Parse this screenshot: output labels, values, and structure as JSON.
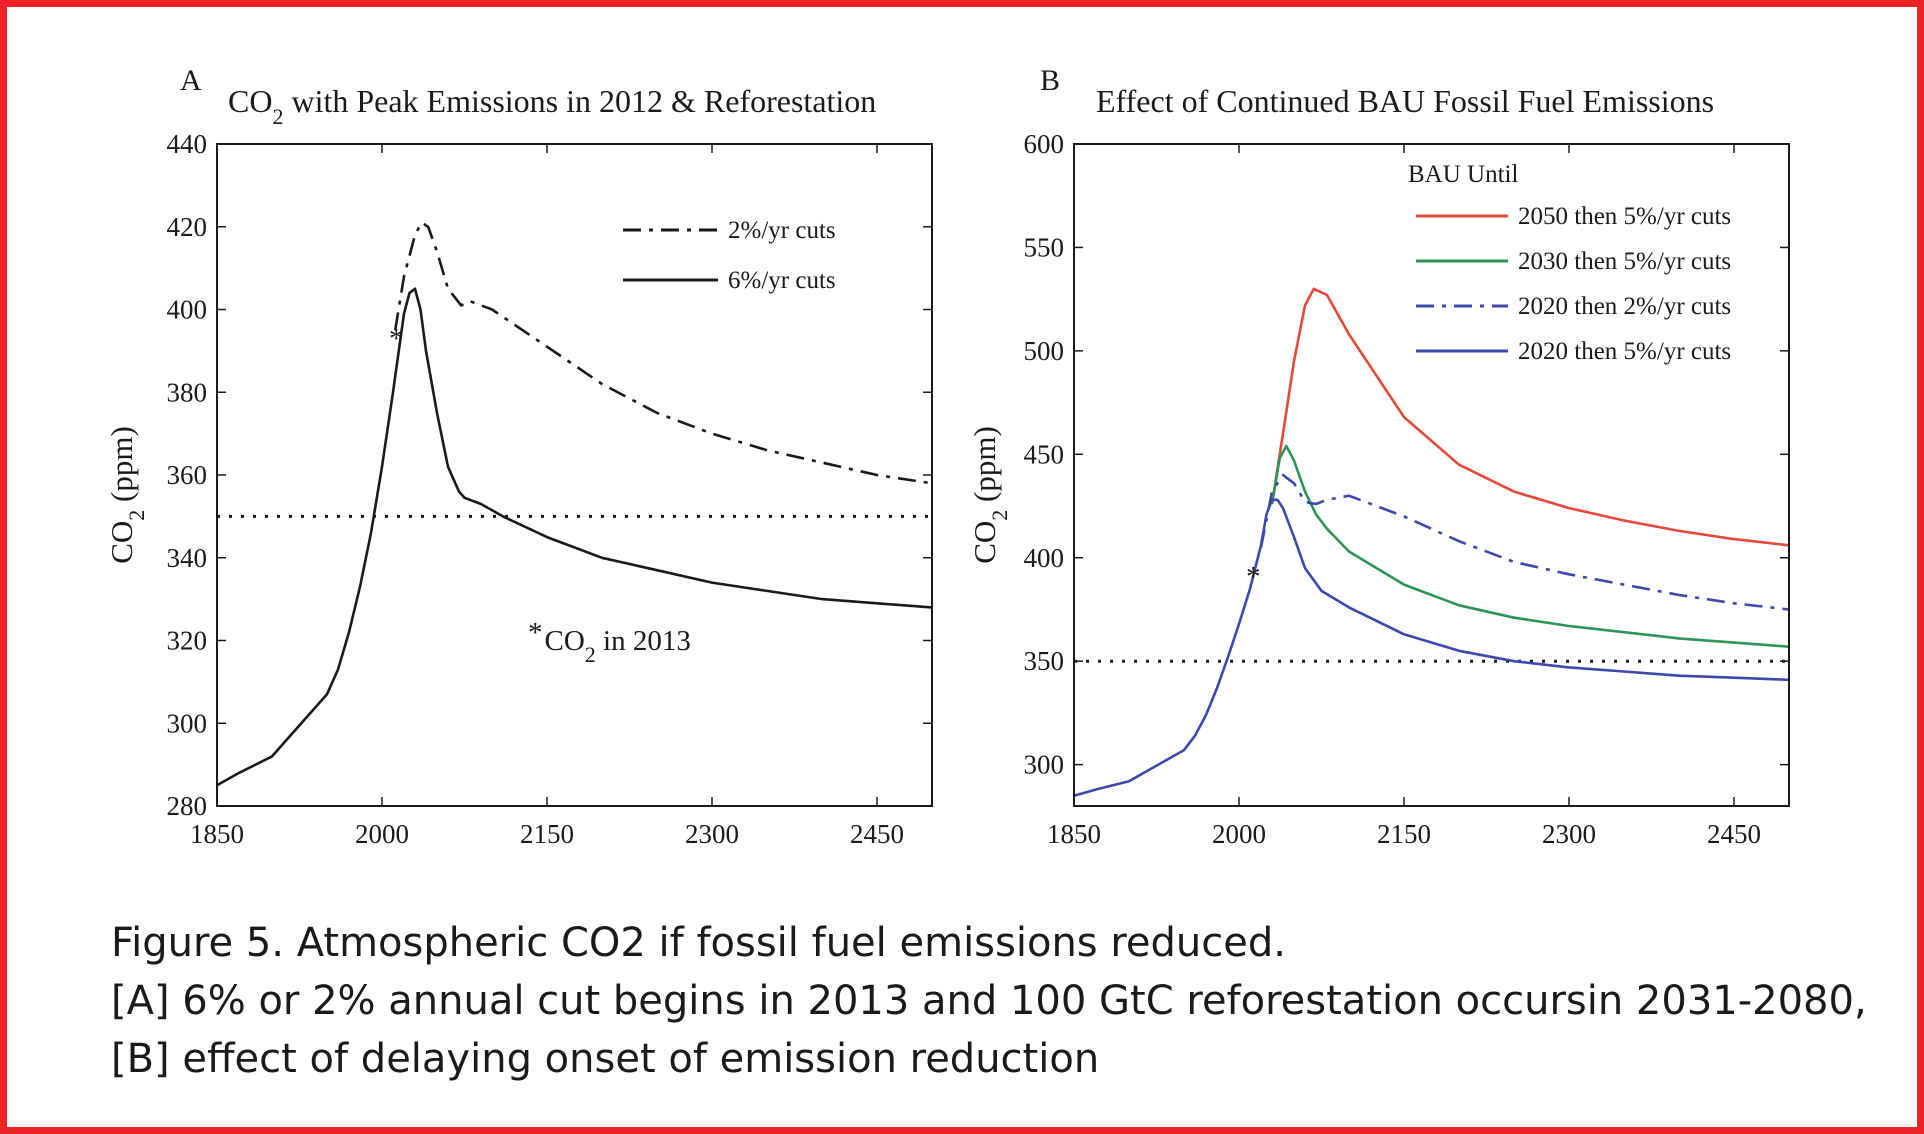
{
  "chart_data": [
    {
      "panel": "A",
      "type": "line",
      "title_prefix": "CO",
      "title_sub": "2",
      "title_rest": " with Peak Emissions in 2012 & Reforestation",
      "ylabel_main": "CO",
      "ylabel_sub": "2",
      "ylabel_rest": " (ppm)",
      "xlim": [
        1850,
        2500
      ],
      "ylim": [
        280,
        440
      ],
      "xticks": [
        1850,
        2000,
        2150,
        2300,
        2450
      ],
      "yticks": [
        280,
        300,
        320,
        340,
        360,
        380,
        400,
        420,
        440
      ],
      "reference_line": {
        "y": 350,
        "style": "dotted"
      },
      "marker": {
        "x": 2013,
        "y": 395,
        "symbol": "*"
      },
      "annotation": {
        "prefix": "*",
        "text_main": "CO",
        "text_sub": "2",
        "text_rest": " in 2013"
      },
      "legend_position": "top-right",
      "series": [
        {
          "name": "2%/yr cuts",
          "style": "dashdot",
          "color": "#1a1a1a",
          "x": [
            2012,
            2020,
            2030,
            2036,
            2042,
            2050,
            2060,
            2072,
            2080,
            2100,
            2150,
            2200,
            2250,
            2300,
            2350,
            2400,
            2450,
            2500
          ],
          "y": [
            395,
            408,
            418,
            421,
            420,
            414,
            405,
            401,
            402,
            400,
            391,
            382,
            375,
            370,
            366,
            363,
            360,
            358
          ]
        },
        {
          "name": "6%/yr cuts",
          "style": "solid",
          "color": "#1a1a1a",
          "x": [
            1850,
            1870,
            1900,
            1920,
            1950,
            1960,
            1970,
            1980,
            1990,
            2000,
            2010,
            2020,
            2025,
            2030,
            2035,
            2040,
            2050,
            2060,
            2070,
            2075,
            2090,
            2110,
            2150,
            2200,
            2250,
            2300,
            2350,
            2400,
            2450,
            2500
          ],
          "y": [
            285,
            288,
            292,
            298,
            307,
            313,
            322,
            333,
            346,
            362,
            380,
            399,
            404,
            405,
            400,
            390,
            375,
            362,
            356,
            354.5,
            353,
            350,
            345,
            340,
            337,
            334,
            332,
            330,
            329,
            328
          ]
        }
      ]
    },
    {
      "panel": "B",
      "type": "line",
      "title": "Effect of Continued BAU Fossil Fuel Emissions",
      "ylabel_main": "CO",
      "ylabel_sub": "2",
      "ylabel_rest": " (ppm)",
      "xlim": [
        1850,
        2500
      ],
      "ylim": [
        280,
        600
      ],
      "xticks": [
        1850,
        2000,
        2150,
        2300,
        2450
      ],
      "yticks": [
        300,
        350,
        400,
        450,
        500,
        550,
        600
      ],
      "reference_line": {
        "y": 350,
        "style": "dotted"
      },
      "marker": {
        "x": 2013,
        "y": 395,
        "symbol": "*"
      },
      "legend_title": "BAU Until",
      "legend_position": "top-right",
      "series": [
        {
          "name": "2050 then 5%/yr cuts",
          "style": "solid",
          "color": "#e8473a",
          "x": [
            2030,
            2040,
            2050,
            2060,
            2068,
            2080,
            2100,
            2150,
            2200,
            2250,
            2300,
            2350,
            2400,
            2450,
            2500
          ],
          "y": [
            426,
            460,
            495,
            522,
            530,
            527,
            508,
            468,
            445,
            432,
            424,
            418,
            413,
            409,
            406
          ]
        },
        {
          "name": "2030 then 5%/yr cuts",
          "style": "solid",
          "color": "#2e9455",
          "x": [
            2030,
            2037,
            2043,
            2050,
            2060,
            2070,
            2080,
            2100,
            2150,
            2200,
            2250,
            2300,
            2350,
            2400,
            2450,
            2500
          ],
          "y": [
            426,
            448,
            454,
            447,
            432,
            421,
            414,
            403,
            387,
            377,
            371,
            367,
            364,
            361,
            359,
            357
          ]
        },
        {
          "name": "2020 then 2%/yr cuts",
          "style": "dashdot",
          "color": "#3a49ab",
          "x": [
            2020,
            2030,
            2040,
            2050,
            2060,
            2070,
            2080,
            2100,
            2150,
            2200,
            2250,
            2300,
            2350,
            2400,
            2450,
            2500
          ],
          "y": [
            405,
            432,
            440,
            436,
            427,
            426,
            428,
            430,
            420,
            408,
            398,
            392,
            387,
            382,
            378,
            375
          ]
        },
        {
          "name": "2020 then 5%/yr cuts",
          "style": "solid",
          "color": "#3a49ab",
          "x": [
            1850,
            1870,
            1900,
            1920,
            1950,
            1960,
            1970,
            1980,
            1990,
            2000,
            2010,
            2020,
            2025,
            2030,
            2035,
            2040,
            2050,
            2060,
            2075,
            2100,
            2150,
            2200,
            2250,
            2300,
            2350,
            2400,
            2450,
            2500
          ],
          "y": [
            285,
            288,
            292,
            298,
            307,
            314,
            324,
            337,
            352,
            368,
            385,
            406,
            421,
            428,
            428,
            424,
            410,
            395,
            384,
            376,
            363,
            355,
            350,
            347,
            345,
            343,
            342,
            341
          ]
        }
      ]
    }
  ],
  "caption": {
    "line1": "Figure 5. Atmospheric CO2 if fossil fuel emissions reduced.",
    "line2": "[A] 6% or 2% annual cut begins in 2013 and 100 GtC reforestation occursin 2031-2080,",
    "line3": "[B] effect of delaying onset of emission reduction"
  },
  "colors": {
    "frame": "#ec2227"
  }
}
